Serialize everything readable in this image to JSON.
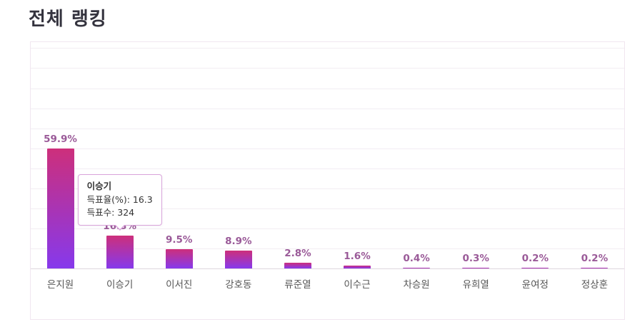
{
  "page": {
    "title": "전체 랭킹"
  },
  "chart_data": {
    "type": "bar",
    "title": "전체 랭킹",
    "categories": [
      "은지원",
      "이승기",
      "이서진",
      "강호동",
      "류준열",
      "이수근",
      "차승원",
      "유희열",
      "윤여정",
      "정상훈"
    ],
    "values": [
      59.9,
      16.3,
      9.5,
      8.9,
      2.8,
      1.6,
      0.4,
      0.3,
      0.2,
      0.2
    ],
    "value_labels": [
      "59.9%",
      "16.3%",
      "9.5%",
      "8.9%",
      "2.8%",
      "1.6%",
      "0.4%",
      "0.3%",
      "0.2%",
      "0.2%"
    ],
    "xlabel": "",
    "ylabel": "득표율(%)",
    "ylim": [
      0,
      113
    ],
    "grid_step": 10,
    "grid": true,
    "legend": "none",
    "colors": {
      "bar_gradient_top": "#cd2f7b",
      "bar_gradient_bottom": "#8639ec",
      "value_label": "#9a5a98",
      "category_label": "#555555",
      "gridline": "#f2edf3",
      "axis_line": "#ded7de",
      "chart_border": "#f1e6f0"
    }
  },
  "tooltip": {
    "target_index": 1,
    "name": "이승기",
    "vote_rate_line": "득표율(%): 16.3",
    "vote_count_line": "득표수: 324"
  }
}
